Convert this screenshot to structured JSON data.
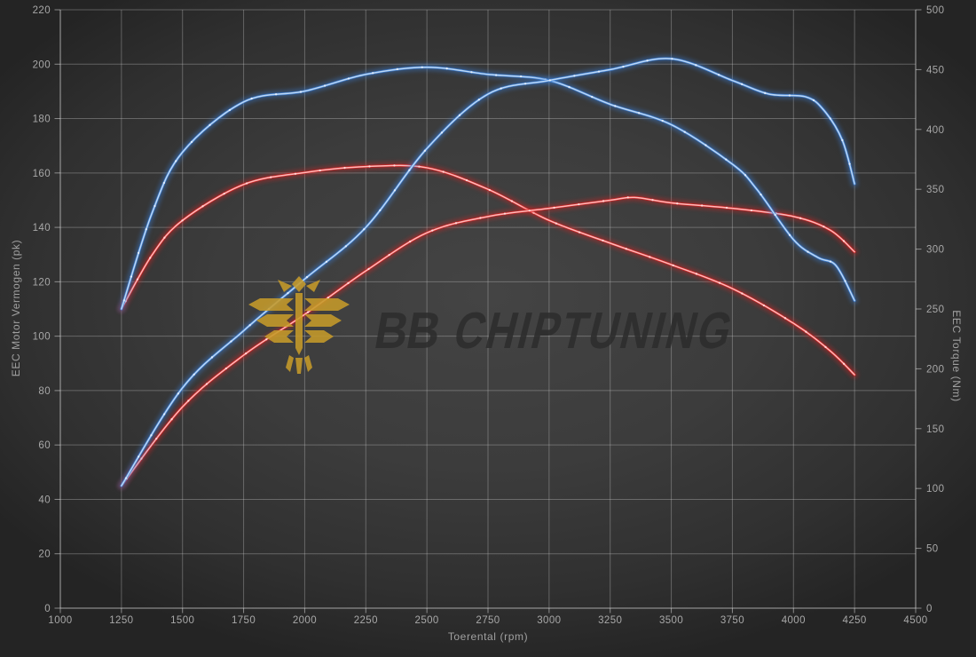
{
  "watermark": {
    "logo_icon": "phoenix-logo",
    "logo_color": "#c59a2b",
    "text_bold": "BB",
    "text_rest": "CHIPTUNING",
    "text_color": "#2c2c2c"
  },
  "chart_data": {
    "type": "line",
    "x_axis": {
      "label": "Toerental (rpm)",
      "min": 1000,
      "max": 4500,
      "tick_step": 250,
      "ticks": [
        1000,
        1250,
        1500,
        1750,
        2000,
        2250,
        2500,
        2750,
        3000,
        3250,
        3500,
        3750,
        4000,
        4250,
        4500
      ]
    },
    "y_axis_left": {
      "label": "EEC Motor Vermogen (pk)",
      "min": 0,
      "max": 220,
      "tick_step": 20,
      "ticks": [
        0,
        20,
        40,
        60,
        80,
        100,
        120,
        140,
        160,
        180,
        200,
        220
      ]
    },
    "y_axis_right": {
      "label": "EEC Torque (Nm)",
      "min": 0,
      "max": 500,
      "tick_step": 50,
      "ticks": [
        0,
        50,
        100,
        150,
        200,
        250,
        300,
        350,
        400,
        450,
        500
      ]
    },
    "grid": "on",
    "legend": "none",
    "series": [
      {
        "id": "torque-original-red",
        "axis": "right",
        "unit": "Nm",
        "color": "#d92222",
        "core": "#ffb9b9",
        "dot": "#ffdede",
        "points": [
          [
            1250,
            250
          ],
          [
            1375,
            295
          ],
          [
            1500,
            324
          ],
          [
            1750,
            354
          ],
          [
            2000,
            364
          ],
          [
            2250,
            369
          ],
          [
            2500,
            368
          ],
          [
            2750,
            350
          ],
          [
            3000,
            324
          ],
          [
            3250,
            305
          ],
          [
            3500,
            287
          ],
          [
            3750,
            267
          ],
          [
            4000,
            238
          ],
          [
            4150,
            215
          ],
          [
            4250,
            195
          ]
        ]
      },
      {
        "id": "power-original-red",
        "axis": "left",
        "unit": "pk",
        "color": "#d92222",
        "core": "#ffb9b9",
        "dot": "#ffdede",
        "points": [
          [
            1250,
            45
          ],
          [
            1500,
            74
          ],
          [
            1750,
            93
          ],
          [
            2000,
            108
          ],
          [
            2250,
            124
          ],
          [
            2500,
            138
          ],
          [
            2750,
            144
          ],
          [
            3000,
            147
          ],
          [
            3250,
            150
          ],
          [
            3350,
            151
          ],
          [
            3500,
            149
          ],
          [
            3750,
            147
          ],
          [
            4000,
            144
          ],
          [
            4150,
            139
          ],
          [
            4250,
            131
          ]
        ]
      },
      {
        "id": "torque-tuned-blue",
        "axis": "right",
        "unit": "Nm",
        "color": "#3b7fd8",
        "core": "#bcd8f6",
        "dot": "#e8f1fc",
        "points": [
          [
            1250,
            250
          ],
          [
            1375,
            330
          ],
          [
            1500,
            381
          ],
          [
            1750,
            423
          ],
          [
            2000,
            432
          ],
          [
            2250,
            446
          ],
          [
            2500,
            452
          ],
          [
            2750,
            446
          ],
          [
            3000,
            441
          ],
          [
            3250,
            421
          ],
          [
            3500,
            404
          ],
          [
            3750,
            371
          ],
          [
            3850,
            350
          ],
          [
            4000,
            308
          ],
          [
            4100,
            293
          ],
          [
            4175,
            286
          ],
          [
            4250,
            257
          ]
        ]
      },
      {
        "id": "power-tuned-blue",
        "axis": "left",
        "unit": "pk",
        "color": "#3b7fd8",
        "core": "#bcd8f6",
        "dot": "#e8f1fc",
        "points": [
          [
            1250,
            45
          ],
          [
            1500,
            81
          ],
          [
            1750,
            102
          ],
          [
            2000,
            121
          ],
          [
            2250,
            140
          ],
          [
            2500,
            169
          ],
          [
            2750,
            189
          ],
          [
            3000,
            194
          ],
          [
            3250,
            198
          ],
          [
            3500,
            202
          ],
          [
            3750,
            194
          ],
          [
            3900,
            189
          ],
          [
            4050,
            188
          ],
          [
            4125,
            183
          ],
          [
            4200,
            172
          ],
          [
            4250,
            156
          ]
        ]
      }
    ],
    "colors": {
      "grid": "rgba(205,205,205,0.34)",
      "axis_line": "rgba(220,220,220,0.55)",
      "tick_text": "#a8a8a8",
      "background": "#3a3a3a"
    }
  }
}
